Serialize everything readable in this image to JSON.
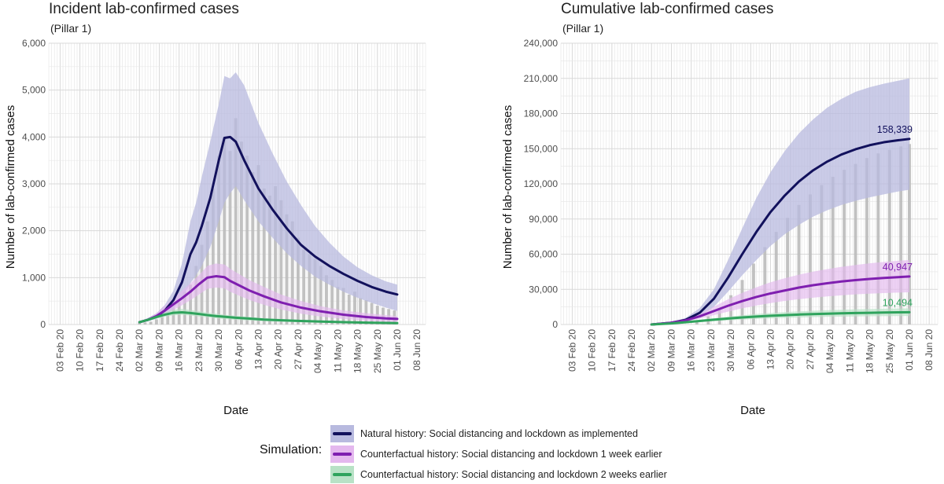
{
  "colors": {
    "natural": "#12115c",
    "natural_band": "#b8badf",
    "week1": "#7f1fb0",
    "week1_band": "#e4b8ee",
    "week2": "#2fa35d",
    "week2_band": "#b8e2c6",
    "observed_bar": "#bbbbbb",
    "grid": "#e8e8e8"
  },
  "chart_data": [
    {
      "type": "line",
      "title": "Incident lab-confirmed cases",
      "subtitle": "(Pillar 1)",
      "xlabel": "Date",
      "ylabel": "Number of lab-confirmed cases",
      "x_tick_labels": [
        "03 Feb 20",
        "10 Feb 20",
        "17 Feb 20",
        "24 Feb 20",
        "02 Mar 20",
        "09 Mar 20",
        "16 Mar 20",
        "23 Mar 20",
        "30 Mar 20",
        "06 Apr 20",
        "13 Apr 20",
        "20 Apr 20",
        "27 Apr 20",
        "04 May 20",
        "11 May 20",
        "18 May 20",
        "25 May 20",
        "01 Jun 20",
        "08 Jun 20"
      ],
      "y_tick_labels": [
        "0",
        "1,000",
        "2,000",
        "3,000",
        "4,000",
        "5,000",
        "6,000"
      ],
      "y_ticks": [
        0,
        1000,
        2000,
        3000,
        4000,
        5000,
        6000
      ],
      "ylim": [
        0,
        6000
      ],
      "x_range_days": [
        -4,
        129
      ],
      "x_data_start_day": 28,
      "x_data_end_day": 119,
      "observed_bars": [
        {
          "day": 28,
          "value": 30
        },
        {
          "day": 30,
          "value": 45
        },
        {
          "day": 32,
          "value": 60
        },
        {
          "day": 34,
          "value": 110
        },
        {
          "day": 36,
          "value": 160
        },
        {
          "day": 38,
          "value": 250
        },
        {
          "day": 40,
          "value": 360
        },
        {
          "day": 42,
          "value": 480
        },
        {
          "day": 44,
          "value": 700
        },
        {
          "day": 46,
          "value": 850
        },
        {
          "day": 48,
          "value": 1250
        },
        {
          "day": 50,
          "value": 1700
        },
        {
          "day": 52,
          "value": 2200
        },
        {
          "day": 54,
          "value": 2900
        },
        {
          "day": 56,
          "value": 3600
        },
        {
          "day": 58,
          "value": 4000
        },
        {
          "day": 60,
          "value": 3700
        },
        {
          "day": 62,
          "value": 4400
        },
        {
          "day": 64,
          "value": 3900
        },
        {
          "day": 66,
          "value": 3600
        },
        {
          "day": 68,
          "value": 3250
        },
        {
          "day": 70,
          "value": 3400
        },
        {
          "day": 72,
          "value": 2900
        },
        {
          "day": 74,
          "value": 2750
        },
        {
          "day": 76,
          "value": 2950
        },
        {
          "day": 78,
          "value": 2650
        },
        {
          "day": 80,
          "value": 2350
        },
        {
          "day": 82,
          "value": 2200
        },
        {
          "day": 84,
          "value": 1850
        },
        {
          "day": 86,
          "value": 1600
        },
        {
          "day": 88,
          "value": 1500
        },
        {
          "day": 90,
          "value": 1400
        },
        {
          "day": 92,
          "value": 1250
        },
        {
          "day": 94,
          "value": 1050
        },
        {
          "day": 96,
          "value": 950
        },
        {
          "day": 98,
          "value": 800
        },
        {
          "day": 100,
          "value": 780
        },
        {
          "day": 102,
          "value": 640
        },
        {
          "day": 104,
          "value": 700
        },
        {
          "day": 106,
          "value": 560
        },
        {
          "day": 108,
          "value": 520
        },
        {
          "day": 110,
          "value": 460
        },
        {
          "day": 112,
          "value": 400
        },
        {
          "day": 114,
          "value": 360
        },
        {
          "day": 116,
          "value": 330
        },
        {
          "day": 118,
          "value": 300
        }
      ],
      "series": [
        {
          "name": "Natural history",
          "x": [
            28,
            31,
            34,
            37,
            40,
            43,
            46,
            48,
            50,
            53,
            56,
            58,
            60,
            62,
            65,
            70,
            75,
            80,
            85,
            90,
            95,
            100,
            105,
            110,
            115,
            119
          ],
          "values": [
            50,
            100,
            170,
            300,
            520,
            900,
            1500,
            1750,
            2100,
            2700,
            3500,
            3980,
            4000,
            3900,
            3500,
            2900,
            2450,
            2050,
            1700,
            1450,
            1250,
            1080,
            930,
            800,
            700,
            640
          ],
          "lower": [
            40,
            70,
            120,
            200,
            330,
            560,
            880,
            1050,
            1250,
            1650,
            2200,
            2600,
            2800,
            2950,
            2650,
            2200,
            1850,
            1520,
            1250,
            1020,
            850,
            700,
            570,
            460,
            360,
            290
          ],
          "upper": [
            65,
            140,
            240,
            420,
            720,
            1300,
            2200,
            2600,
            3150,
            3900,
            4700,
            5300,
            5250,
            5380,
            5100,
            4300,
            3650,
            3050,
            2550,
            2100,
            1750,
            1450,
            1220,
            1050,
            920,
            850
          ]
        },
        {
          "name": "Counterfactual 1 week earlier",
          "x": [
            28,
            31,
            34,
            37,
            40,
            43,
            46,
            49,
            52,
            55,
            58,
            60,
            63,
            67,
            72,
            78,
            85,
            92,
            100,
            108,
            115,
            119
          ],
          "values": [
            50,
            100,
            180,
            300,
            430,
            560,
            700,
            860,
            1000,
            1030,
            1010,
            930,
            840,
            720,
            600,
            470,
            360,
            280,
            210,
            160,
            130,
            120
          ],
          "lower": [
            40,
            75,
            130,
            220,
            310,
            410,
            520,
            640,
            760,
            790,
            770,
            700,
            620,
            520,
            420,
            320,
            230,
            170,
            120,
            80,
            60,
            50
          ],
          "upper": [
            65,
            135,
            240,
            400,
            560,
            720,
            880,
            1050,
            1250,
            1300,
            1280,
            1190,
            1080,
            940,
            800,
            640,
            500,
            390,
            300,
            240,
            200,
            180
          ]
        },
        {
          "name": "Counterfactual 2 weeks earlier",
          "x": [
            28,
            31,
            34,
            37,
            40,
            43,
            46,
            49,
            52,
            55,
            58,
            62,
            67,
            72,
            78,
            85,
            92,
            100,
            108,
            115,
            119
          ],
          "values": [
            50,
            100,
            160,
            210,
            250,
            260,
            245,
            225,
            200,
            180,
            165,
            145,
            125,
            105,
            90,
            75,
            62,
            50,
            40,
            34,
            30
          ],
          "lower": [
            40,
            80,
            125,
            165,
            195,
            205,
            190,
            170,
            150,
            132,
            118,
            100,
            85,
            70,
            58,
            47,
            38,
            30,
            23,
            19,
            17
          ],
          "upper": [
            65,
            125,
            200,
            265,
            315,
            330,
            310,
            285,
            255,
            230,
            210,
            185,
            160,
            135,
            118,
            100,
            84,
            70,
            58,
            50,
            45
          ]
        }
      ]
    },
    {
      "type": "line",
      "title": "Cumulative lab-confirmed cases",
      "subtitle": "(Pillar 1)",
      "xlabel": "Date",
      "ylabel": "Number of lab-confirmed cases",
      "x_tick_labels": [
        "03 Feb 20",
        "10 Feb 20",
        "17 Feb 20",
        "24 Feb 20",
        "02 Mar 20",
        "09 Mar 20",
        "16 Mar 20",
        "23 Mar 20",
        "30 Mar 20",
        "06 Apr 20",
        "13 Apr 20",
        "20 Apr 20",
        "27 Apr 20",
        "04 May 20",
        "11 May 20",
        "18 May 20",
        "25 May 20",
        "01 Jun 20",
        "08 Jun 20"
      ],
      "y_tick_labels": [
        "0",
        "30,000",
        "60,000",
        "90,000",
        "120,000",
        "150,000",
        "180,000",
        "210,000",
        "240,000"
      ],
      "y_ticks": [
        0,
        30000,
        60000,
        90000,
        120000,
        150000,
        180000,
        210000,
        240000
      ],
      "ylim": [
        0,
        240000
      ],
      "x_range_days": [
        -4,
        129
      ],
      "x_data_start_day": 28,
      "x_data_end_day": 119,
      "end_labels": [
        {
          "series": 0,
          "text": "158,339",
          "value": 158339
        },
        {
          "series": 1,
          "text": "40,947",
          "value": 40947
        },
        {
          "series": 2,
          "text": "10,494",
          "value": 10494
        }
      ],
      "observed_bars": [
        {
          "day": 44,
          "value": 3000
        },
        {
          "day": 48,
          "value": 7000
        },
        {
          "day": 52,
          "value": 14000
        },
        {
          "day": 56,
          "value": 25000
        },
        {
          "day": 60,
          "value": 38000
        },
        {
          "day": 64,
          "value": 52000
        },
        {
          "day": 68,
          "value": 66000
        },
        {
          "day": 72,
          "value": 79000
        },
        {
          "day": 76,
          "value": 91000
        },
        {
          "day": 80,
          "value": 102000
        },
        {
          "day": 84,
          "value": 111000
        },
        {
          "day": 88,
          "value": 119000
        },
        {
          "day": 92,
          "value": 126000
        },
        {
          "day": 96,
          "value": 132000
        },
        {
          "day": 100,
          "value": 137000
        },
        {
          "day": 104,
          "value": 142000
        },
        {
          "day": 108,
          "value": 146000
        },
        {
          "day": 112,
          "value": 149000
        },
        {
          "day": 116,
          "value": 152000
        },
        {
          "day": 119,
          "value": 154000
        }
      ],
      "series": [
        {
          "name": "Natural history",
          "x": [
            28,
            35,
            40,
            45,
            50,
            55,
            60,
            65,
            70,
            75,
            80,
            85,
            90,
            95,
            100,
            105,
            110,
            115,
            119
          ],
          "values": [
            0,
            1500,
            4000,
            10000,
            22000,
            40000,
            60000,
            79000,
            96000,
            110000,
            122000,
            131500,
            139000,
            145000,
            149500,
            153000,
            155500,
            157200,
            158339
          ],
          "lower": [
            0,
            1000,
            2800,
            7000,
            15000,
            28000,
            42000,
            55000,
            67000,
            77000,
            85000,
            92000,
            97500,
            102000,
            105500,
            108500,
            111000,
            113500,
            115000
          ],
          "upper": [
            0,
            2000,
            5500,
            14000,
            30000,
            55000,
            82000,
            108000,
            130000,
            148000,
            163000,
            175000,
            185000,
            192500,
            198500,
            202500,
            205500,
            208000,
            210000
          ]
        },
        {
          "name": "Counterfactual 1 week earlier",
          "x": [
            28,
            35,
            40,
            45,
            50,
            55,
            60,
            65,
            70,
            75,
            80,
            85,
            90,
            95,
            100,
            105,
            110,
            115,
            119
          ],
          "values": [
            0,
            1500,
            3500,
            7000,
            11500,
            16000,
            20000,
            23500,
            26500,
            29000,
            31500,
            33500,
            35200,
            36700,
            37900,
            38900,
            39700,
            40400,
            40947
          ],
          "lower": [
            0,
            1000,
            2500,
            5000,
            8000,
            11000,
            13800,
            16200,
            18300,
            20100,
            21600,
            22900,
            24000,
            24900,
            25700,
            26300,
            26800,
            27200,
            27500
          ],
          "upper": [
            0,
            2000,
            4600,
            9200,
            15200,
            21500,
            27000,
            31800,
            36000,
            39500,
            42500,
            45100,
            47300,
            49200,
            50800,
            52200,
            53400,
            54400,
            55000
          ]
        },
        {
          "name": "Counterfactual 2 weeks earlier",
          "x": [
            28,
            35,
            40,
            45,
            50,
            55,
            60,
            65,
            70,
            75,
            80,
            85,
            90,
            95,
            100,
            105,
            110,
            115,
            119
          ],
          "values": [
            0,
            900,
            1900,
            3000,
            4100,
            5100,
            6000,
            6800,
            7450,
            8000,
            8500,
            8900,
            9250,
            9550,
            9800,
            10000,
            10200,
            10350,
            10494
          ],
          "lower": [
            0,
            650,
            1350,
            2100,
            2850,
            3550,
            4200,
            4750,
            5200,
            5600,
            5950,
            6250,
            6500,
            6700,
            6870,
            7000,
            7120,
            7220,
            7300
          ],
          "upper": [
            0,
            1150,
            2450,
            3900,
            5350,
            6700,
            7900,
            8950,
            9800,
            10550,
            11200,
            11750,
            12200,
            12600,
            12950,
            13200,
            13450,
            13650,
            13800
          ]
        }
      ]
    }
  ],
  "legend": {
    "title": "Simulation:",
    "items": [
      {
        "label": "Natural history: Social distancing and lockdown as implemented"
      },
      {
        "label": "Counterfactual history: Social distancing and lockdown 1 week earlier"
      },
      {
        "label": "Counterfactual history: Social distancing and lockdown 2 weeks earlier"
      }
    ]
  }
}
